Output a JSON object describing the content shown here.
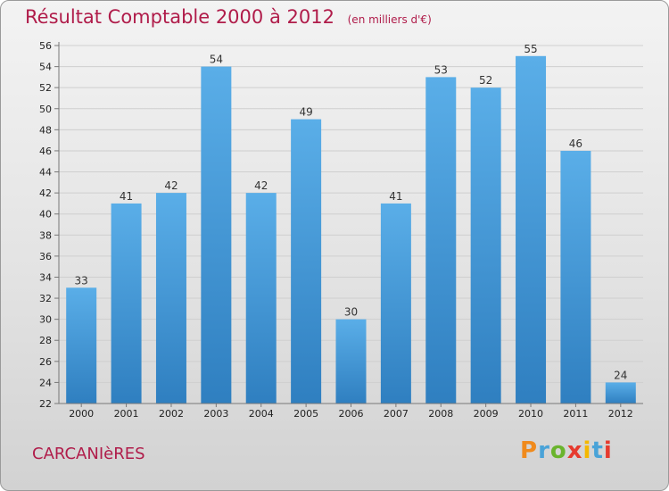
{
  "chart_data": {
    "type": "bar",
    "title": "Résultat Comptable 2000 à 2012",
    "subtitle": "(en milliers d'€)",
    "categories": [
      "2000",
      "2001",
      "2002",
      "2003",
      "2004",
      "2005",
      "2006",
      "2007",
      "2008",
      "2009",
      "2010",
      "2011",
      "2012"
    ],
    "values": [
      33,
      41,
      42,
      54,
      42,
      49,
      30,
      41,
      53,
      52,
      55,
      46,
      24
    ],
    "ylim": [
      22,
      56
    ],
    "yticks": [
      22,
      24,
      26,
      28,
      30,
      32,
      34,
      36,
      38,
      40,
      42,
      44,
      46,
      48,
      50,
      52,
      54,
      56
    ],
    "grid": true,
    "bar_color": "#4a9fdc",
    "xlabel": "",
    "ylabel": ""
  },
  "commune": "CARCANIèRES",
  "logo": {
    "text": "Proxiti",
    "colors": [
      "#f08a1c",
      "#4aa3d8",
      "#6ab42d",
      "#e63a2e",
      "#f5b800",
      "#4aa3d8",
      "#e63a2e"
    ]
  },
  "colors": {
    "title": "#b01c4a"
  }
}
